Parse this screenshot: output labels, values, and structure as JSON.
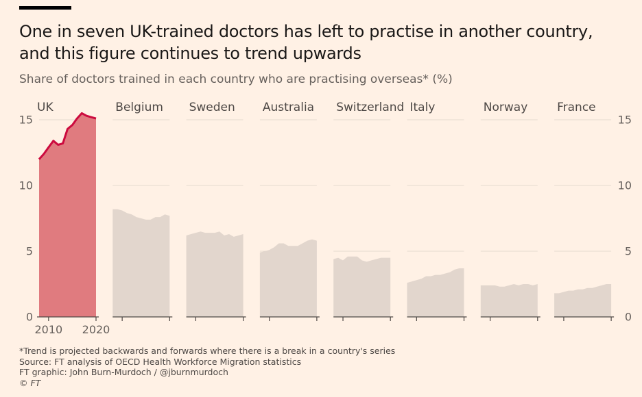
{
  "header": {
    "title_line1": "One in seven UK-trained doctors has left to practise in another country,",
    "title_line2": "and this figure continues to trend upwards",
    "subtitle": "Share of doctors trained in each country who are practising overseas* (%)"
  },
  "colors": {
    "background": "#fff1e5",
    "uk_line": "#cc0a3e",
    "uk_fill": "#e07b7f",
    "other_fill": "#e2d6cd",
    "grid": "#e6dad0",
    "axis": "#66605c"
  },
  "chart_data": {
    "type": "area",
    "small_multiples": true,
    "y_axis": {
      "min": 0,
      "max": 15,
      "ticks": [
        0,
        5,
        10,
        15
      ],
      "grid": true,
      "labels_on": "both sides"
    },
    "x_axis": {
      "range": [
        2008,
        2020
      ],
      "tick_labels": [
        "2010",
        "2020"
      ],
      "labelled_panel": "UK"
    },
    "x": [
      2008,
      2009,
      2010,
      2011,
      2012,
      2013,
      2014,
      2015,
      2016,
      2017,
      2018,
      2019,
      2020
    ],
    "series": [
      {
        "name": "UK",
        "highlight": true,
        "values": [
          12.0,
          12.4,
          12.9,
          13.4,
          13.1,
          13.2,
          14.3,
          14.6,
          15.1,
          15.5,
          15.3,
          15.2,
          15.1
        ]
      },
      {
        "name": "Belgium",
        "values": [
          8.2,
          8.2,
          8.1,
          7.9,
          7.8,
          7.6,
          7.5,
          7.4,
          7.4,
          7.6,
          7.6,
          7.8,
          7.7
        ]
      },
      {
        "name": "Sweden",
        "values": [
          6.2,
          6.3,
          6.4,
          6.5,
          6.4,
          6.4,
          6.4,
          6.5,
          6.2,
          6.3,
          6.1,
          6.2,
          6.3
        ]
      },
      {
        "name": "Australia",
        "values": [
          4.9,
          5.0,
          5.1,
          5.3,
          5.6,
          5.6,
          5.4,
          5.4,
          5.4,
          5.6,
          5.8,
          5.9,
          5.8
        ]
      },
      {
        "name": "Switzerland",
        "values": [
          4.4,
          4.5,
          4.3,
          4.6,
          4.6,
          4.6,
          4.3,
          4.2,
          4.3,
          4.4,
          4.5,
          4.5,
          4.5
        ]
      },
      {
        "name": "Italy",
        "values": [
          2.6,
          2.7,
          2.8,
          2.9,
          3.1,
          3.1,
          3.2,
          3.2,
          3.3,
          3.4,
          3.6,
          3.7,
          3.7
        ]
      },
      {
        "name": "Norway",
        "values": [
          2.4,
          2.4,
          2.4,
          2.4,
          2.3,
          2.3,
          2.4,
          2.5,
          2.4,
          2.5,
          2.5,
          2.4,
          2.5
        ]
      },
      {
        "name": "France",
        "values": [
          1.8,
          1.8,
          1.9,
          2.0,
          2.0,
          2.1,
          2.1,
          2.2,
          2.2,
          2.3,
          2.4,
          2.5,
          2.5
        ]
      }
    ]
  },
  "footer": {
    "note": "*Trend is projected backwards and forwards where there is a break in a country's series",
    "source": "Source: FT analysis of OECD Health Workforce Migration statistics",
    "credit": "FT graphic: John Burn-Murdoch / @jburnmurdoch",
    "copyright": "© FT"
  }
}
